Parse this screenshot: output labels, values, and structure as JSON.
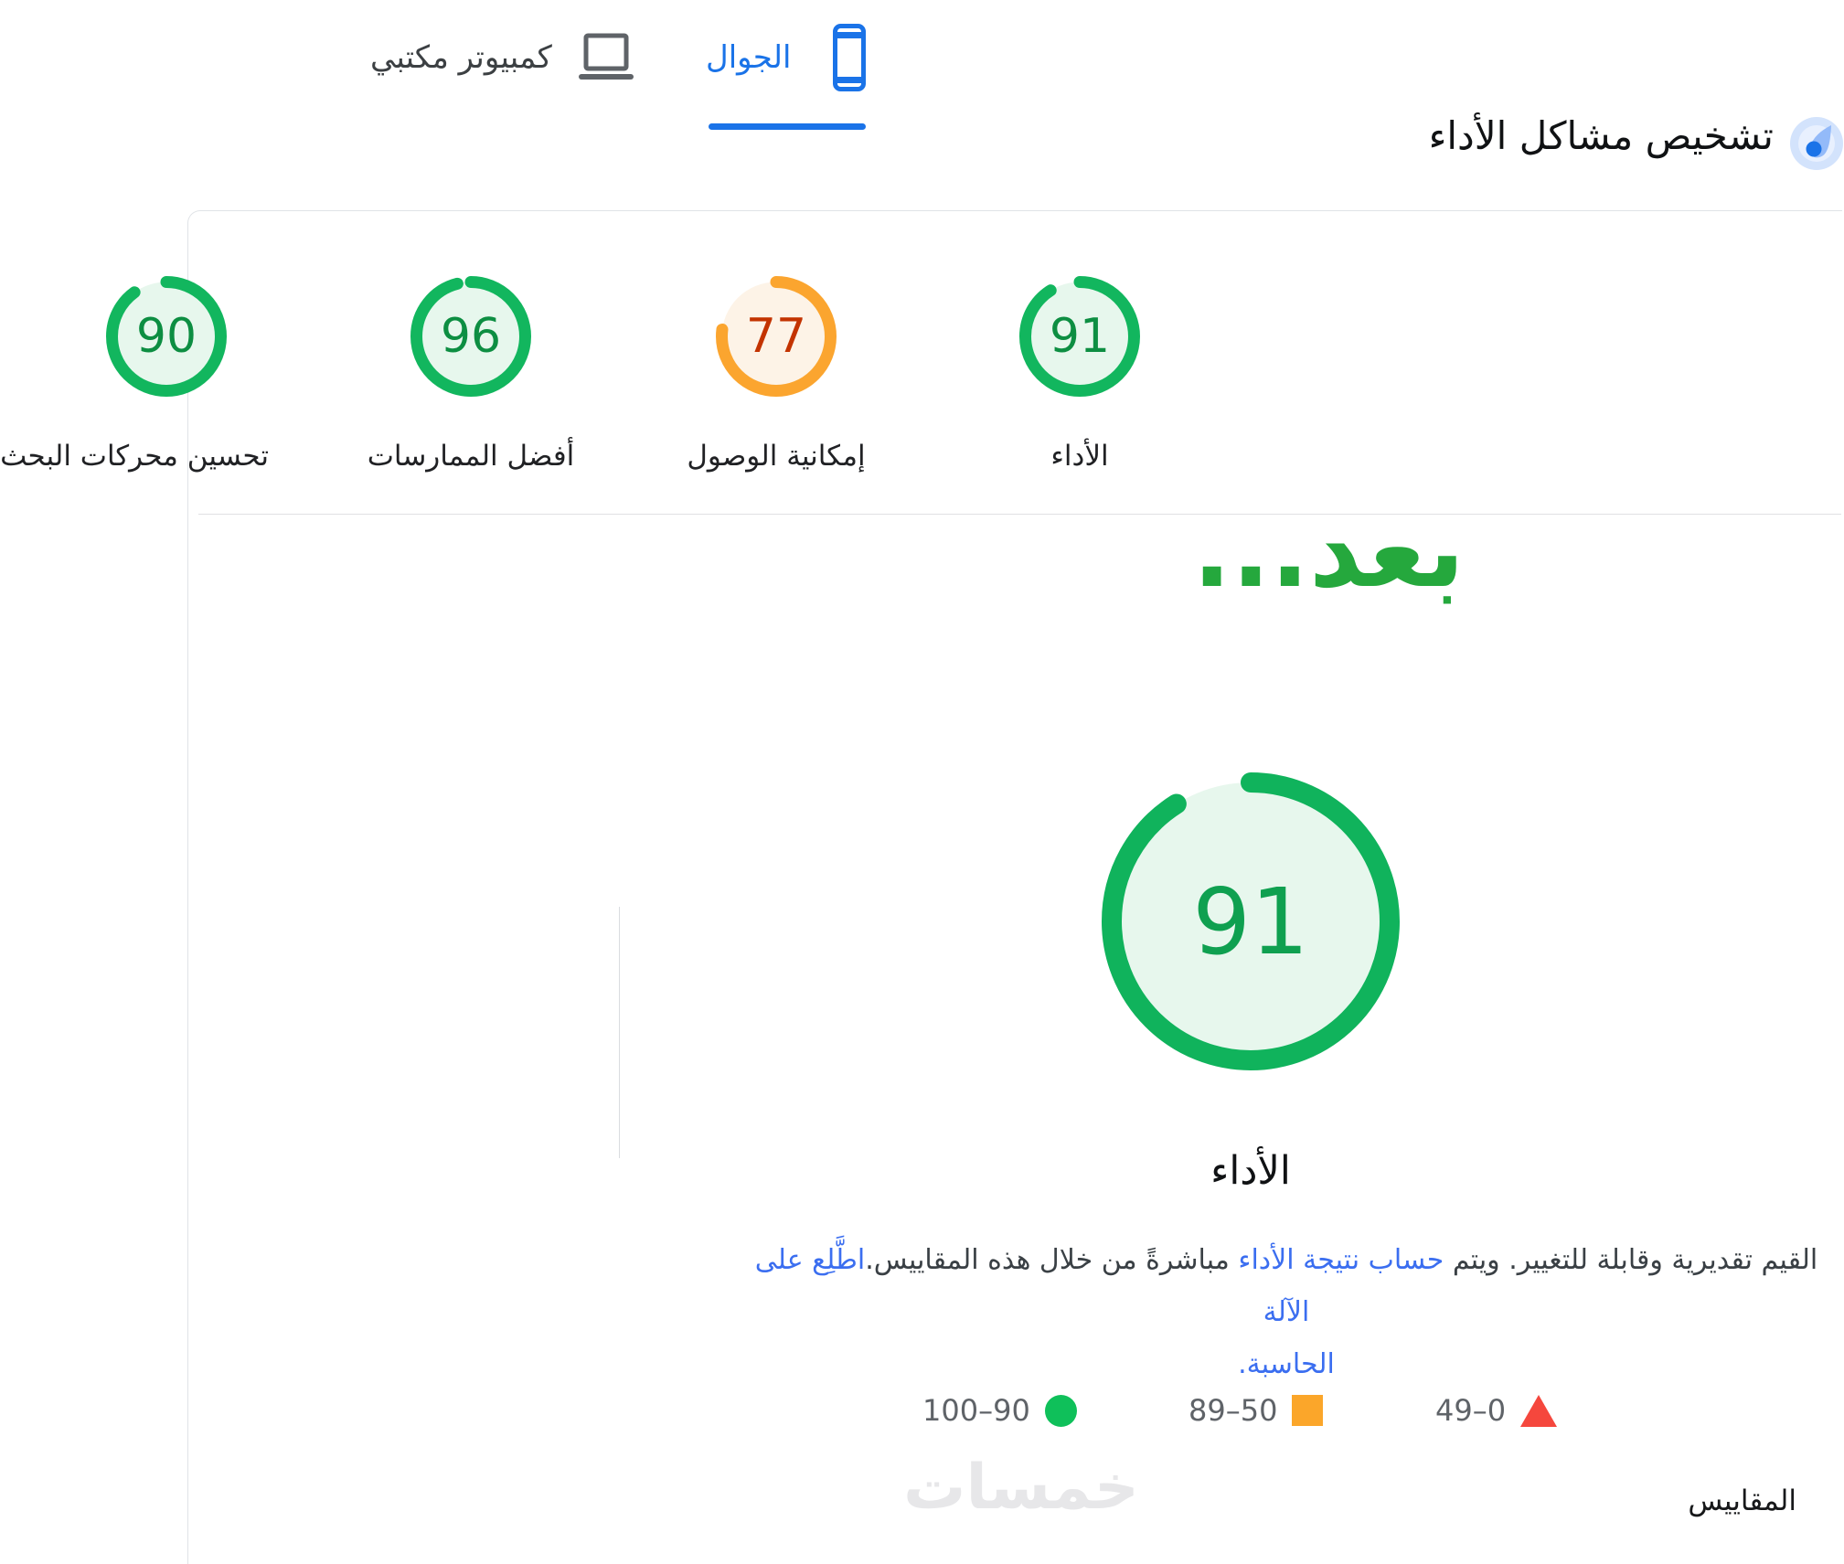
{
  "tabs": {
    "mobile": {
      "label": "الجوال",
      "active": true
    },
    "desktop": {
      "label": "كمبيوتر مكتبي",
      "active": false
    }
  },
  "header": {
    "title": "تشخيص مشاكل الأداء"
  },
  "scores_row": {
    "performance": {
      "label": "الأداء",
      "score": 91,
      "arc_color": "#12b65e",
      "fill_color": "#e7f7ed",
      "text_color": "#0d8e42"
    },
    "accessibility": {
      "label": "إمكانية الوصول",
      "score": 77,
      "arc_color": "#fba52f",
      "fill_color": "#fdf3e7",
      "text_color": "#c33300"
    },
    "best_practices": {
      "label": "أفضل الممارسات",
      "score": 96,
      "arc_color": "#12b65e",
      "fill_color": "#e7f7ed",
      "text_color": "#0d8e42"
    },
    "seo_partial": {
      "label": "تحسين محركات البحث",
      "score": 90,
      "arc_color": "#12b65e",
      "fill_color": "#e7f7ed",
      "text_color": "#0d8e42"
    }
  },
  "after_note": "بعد...",
  "main_gauge": {
    "label": "الأداء",
    "score": 91,
    "arc_color": "#10b35c",
    "fill_color": "#e7f7ed",
    "text_color": "#0fa050"
  },
  "description": {
    "part1": "القيم تقديرية وقابلة للتغيير. ويتم ",
    "link1": "حساب نتيجة الأداء",
    "part2": " مباشرةً من خلال هذه المقاييس.",
    "link2": "اطَّلِع على الآلة",
    "link3": "الحاسبة."
  },
  "legend": {
    "good": {
      "range": "90–100",
      "color": "#0fc05a",
      "shape": "circle"
    },
    "average": {
      "range": "50–89",
      "color": "#fba62a",
      "shape": "square"
    },
    "poor": {
      "range": "0–49",
      "color": "#f5473d",
      "shape": "triangle"
    }
  },
  "metrics_heading": "المقاييس",
  "watermark": "خمسات",
  "colors": {
    "accent_blue": "#1a73e8",
    "link_blue": "#3b6ef0",
    "annotation_green": "#25a83d",
    "divider": "#e0e3e7",
    "legend_text": "#5f6368"
  }
}
